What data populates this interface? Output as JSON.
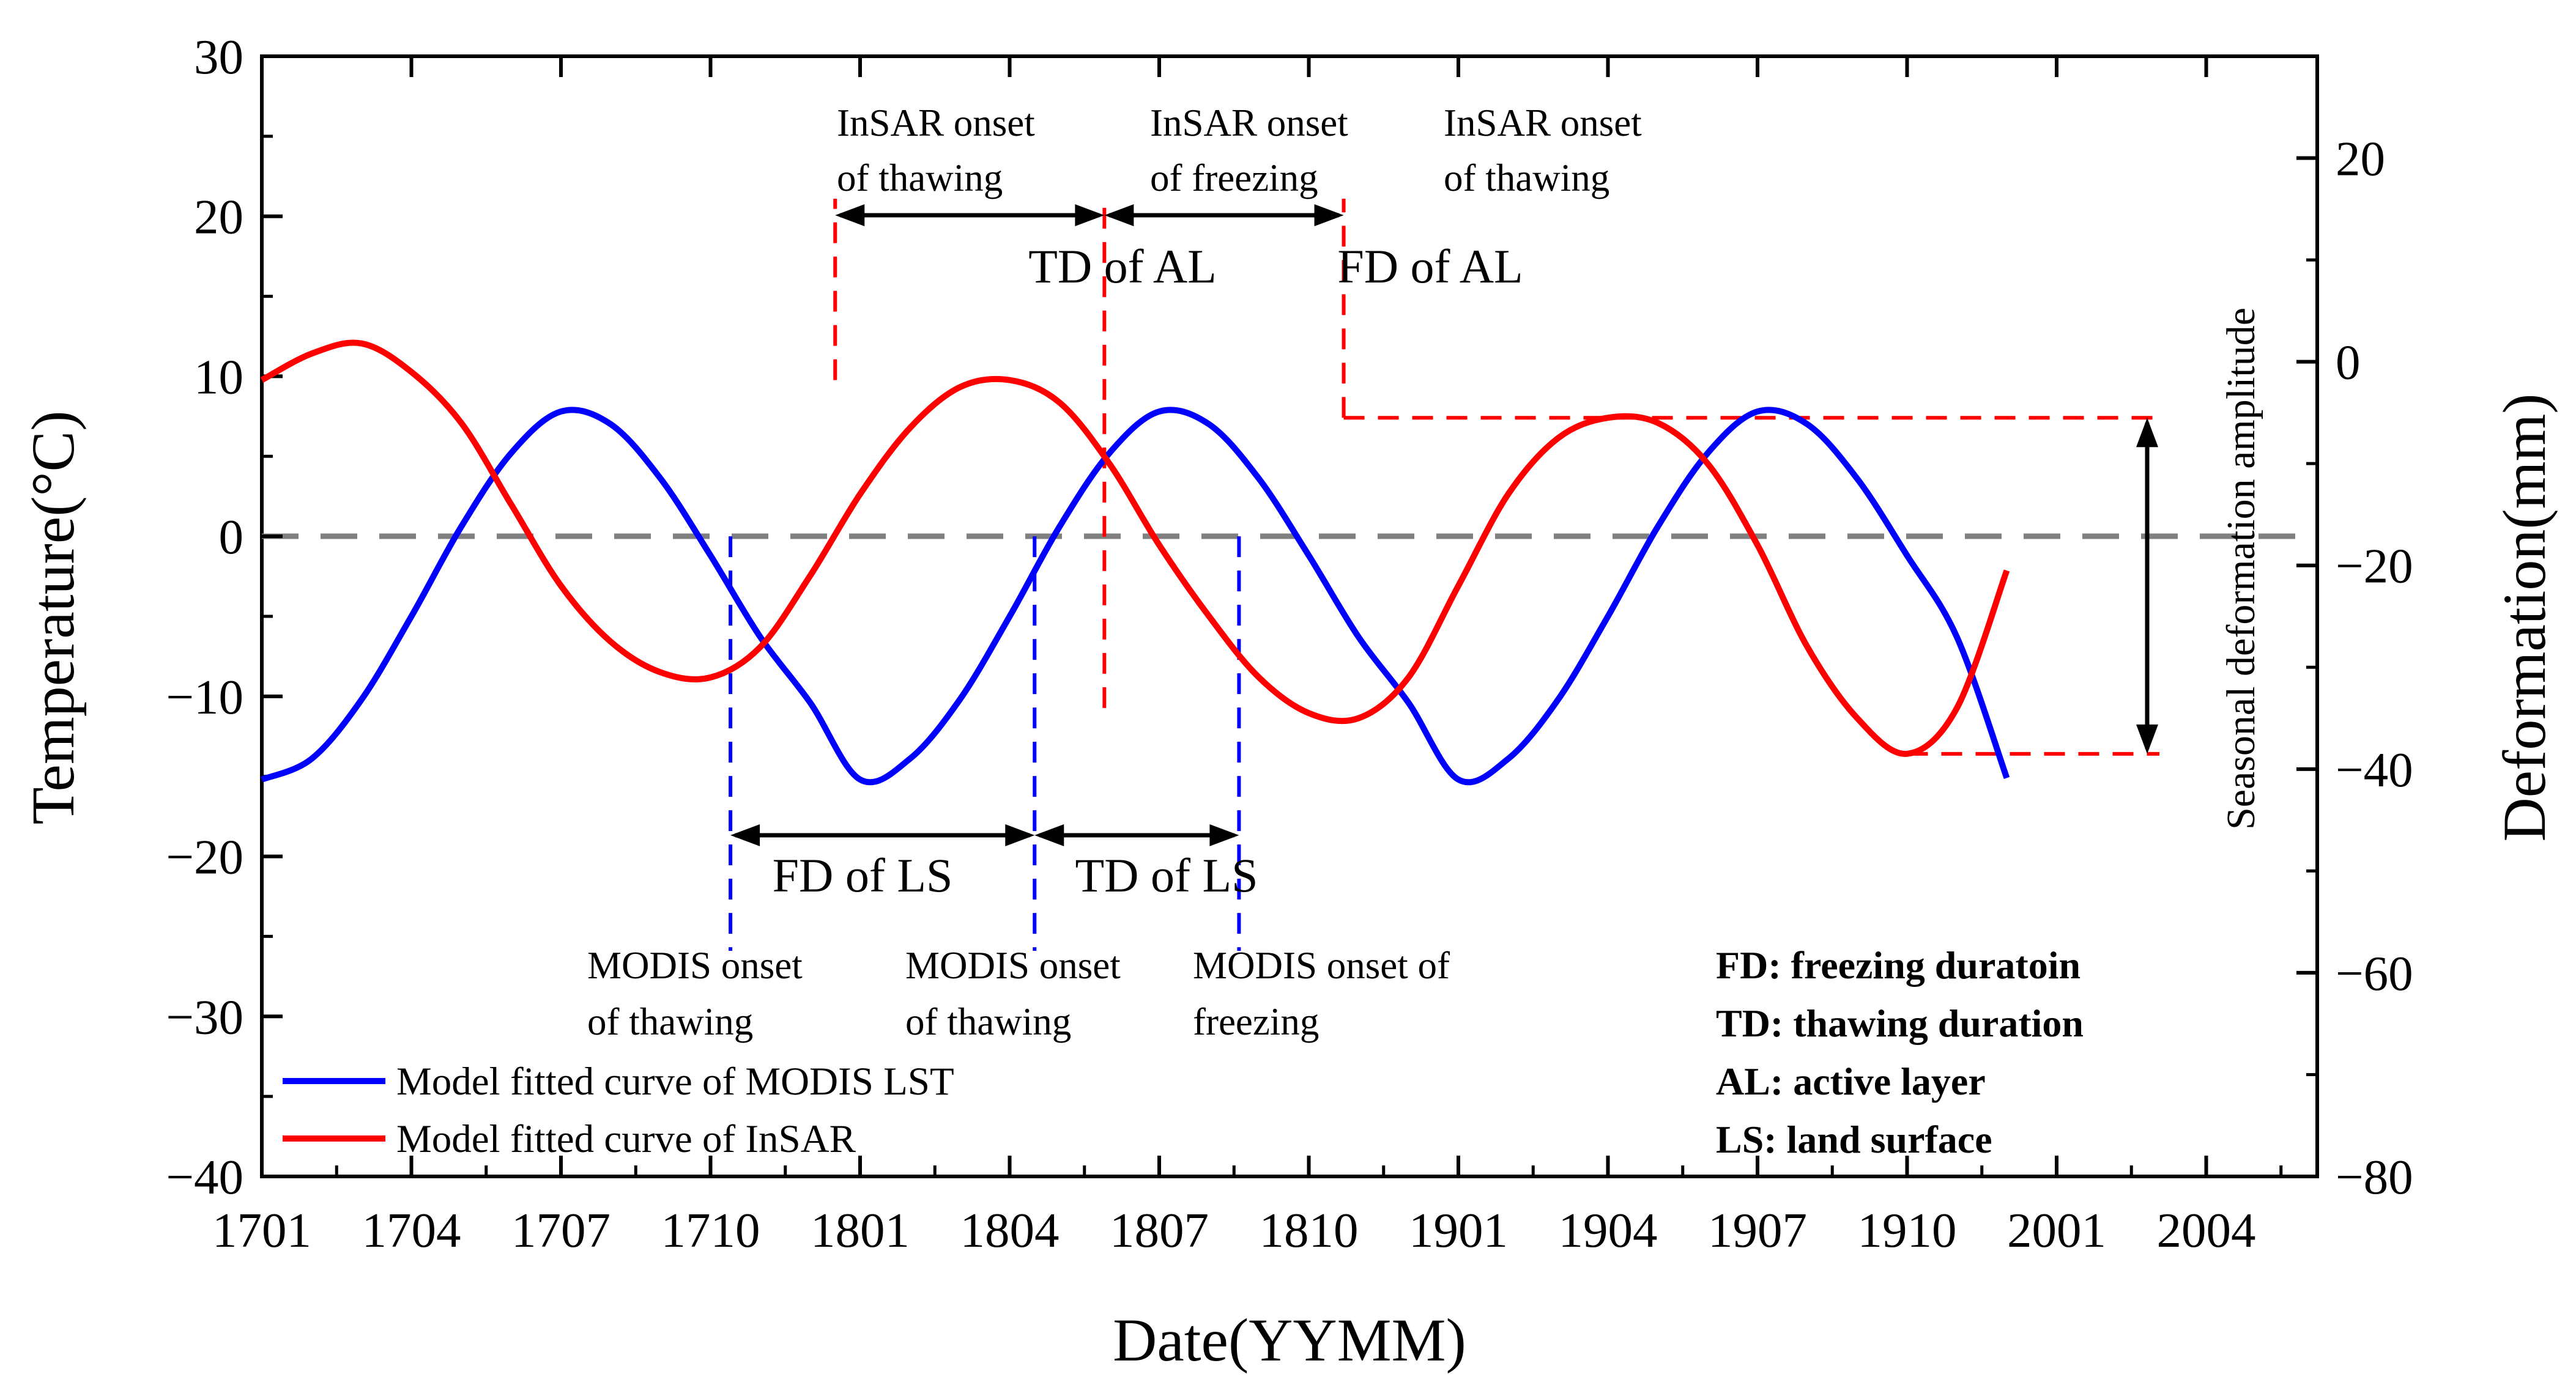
{
  "chart_data": {
    "type": "line",
    "title": "",
    "xlabel": "Date(YYMM)",
    "ylabel_left": "Temperature(°C)",
    "ylabel_right": "Deformation(mm)",
    "x_ticks": [
      "1701",
      "1704",
      "1707",
      "1710",
      "1801",
      "1804",
      "1807",
      "1810",
      "1901",
      "1904",
      "1907",
      "1910",
      "2001",
      "2004"
    ],
    "xlim_months": [
      0,
      41
    ],
    "ylim_left": [
      -40,
      30
    ],
    "yticks_left": [
      30,
      20,
      10,
      0,
      -10,
      -20,
      -30,
      -40
    ],
    "yticks_left_labels": [
      "30",
      "20",
      "10",
      "0",
      "−10",
      "−20",
      "−30",
      "−40"
    ],
    "ylim_right": [
      -80,
      30
    ],
    "yticks_right": [
      20,
      0,
      -20,
      -40,
      -60,
      -80
    ],
    "yticks_right_labels": [
      "20",
      "0",
      "−20",
      "−40",
      "−60",
      "−80"
    ],
    "series": [
      {
        "name": "Model fitted curve of MODIS LST",
        "axis": "left",
        "color": "#0000ff",
        "x_months": [
          0,
          1,
          2,
          3,
          4,
          5,
          6,
          7,
          8,
          9,
          10,
          11,
          12,
          13,
          14,
          15,
          16,
          17,
          18,
          19,
          20,
          21,
          22,
          23,
          24,
          25,
          26,
          27,
          28,
          29,
          30,
          31,
          32,
          33,
          34,
          35
        ],
        "values": [
          -15.2,
          -13.9,
          -10.2,
          -5.0,
          0.6,
          5.2,
          7.8,
          7.0,
          3.6,
          -1.2,
          -6.3,
          -10.4,
          -15.2,
          -13.9,
          -10.2,
          -5.0,
          0.6,
          5.2,
          7.8,
          7.0,
          3.6,
          -1.2,
          -6.3,
          -10.4,
          -15.2,
          -13.9,
          -10.2,
          -5.0,
          0.6,
          5.2,
          7.8,
          7.0,
          3.6,
          -1.2,
          -6.3,
          -15.1
        ]
      },
      {
        "name": "Model fitted curve of InSAR",
        "axis": "right",
        "color": "#ff0000",
        "x_months": [
          0,
          1,
          2,
          3,
          4,
          5,
          6,
          7,
          8,
          9,
          10,
          11,
          12,
          13,
          14,
          15,
          16,
          17,
          18,
          19,
          20,
          21,
          22,
          23,
          24,
          25,
          26,
          27,
          28,
          29,
          30,
          31,
          32,
          33,
          34,
          35
        ],
        "values": [
          -1.8,
          0.8,
          1.8,
          -1.0,
          -6.0,
          -14.0,
          -22.0,
          -27.5,
          -30.5,
          -31.0,
          -28.0,
          -21.0,
          -13.0,
          -6.5,
          -2.5,
          -1.8,
          -4.0,
          -10.0,
          -18.0,
          -25.0,
          -31.0,
          -34.5,
          -35.0,
          -31.0,
          -22.0,
          -13.0,
          -7.5,
          -5.5,
          -6.0,
          -10.0,
          -18.0,
          -28.0,
          -35.0,
          -38.5,
          -34.0,
          -20.5
        ]
      }
    ],
    "annotations": {
      "insar_labels": [
        {
          "line1": "InSAR onset",
          "line2": "of thawing"
        },
        {
          "line1": "InSAR onset",
          "line2": "of  freezing"
        },
        {
          "line1": "InSAR onset",
          "line2": "of thawing"
        }
      ],
      "modis_labels": [
        {
          "line1": "MODIS onset",
          "line2": "of thawing"
        },
        {
          "line1": "MODIS onset",
          "line2": "of thawing"
        },
        {
          "line1": "MODIS onset of",
          "line2": "freezing"
        }
      ],
      "durations": [
        "TD of AL",
        "FD of AL",
        "FD of LS",
        "TD of LS"
      ],
      "amplitude_label": "Seasonal deformation amplitude",
      "abbreviations": [
        "FD: freezing duratoin",
        "TD: thawing duration",
        "AL: active layer",
        "LS:  land surface"
      ]
    },
    "legend_position": "bottom-left",
    "zero_line": true,
    "grid": false
  }
}
